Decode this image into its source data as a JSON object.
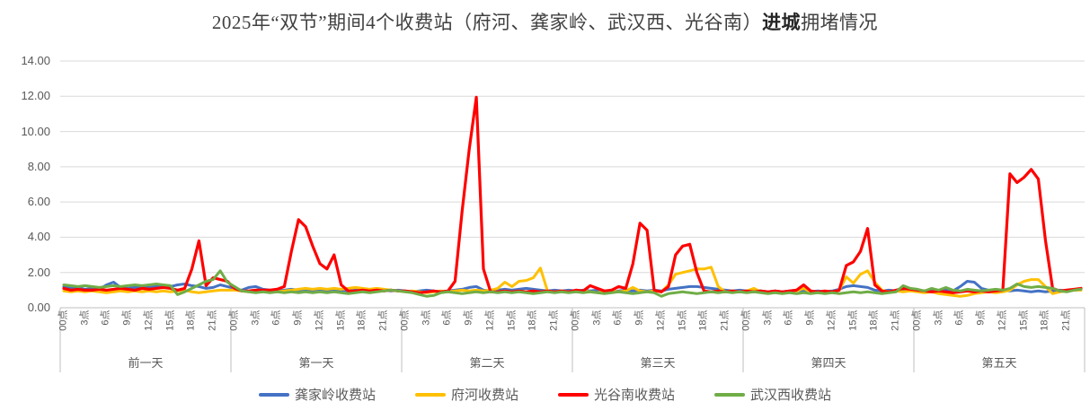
{
  "title": {
    "part1": "2025年“双节”期间4个收费站（府河、龚家岭、武汉西、光谷南）",
    "part2_bold": "进城",
    "part3": "拥堵情况"
  },
  "chart_data": {
    "type": "line",
    "title": "2025年“双节”期间4个收费站（府河、龚家岭、武汉西、光谷南）进城拥堵情况",
    "ylim": [
      0,
      14
    ],
    "ytick_step": 2,
    "ytick_labels": [
      "0.00",
      "2.00",
      "4.00",
      "6.00",
      "8.00",
      "10.00",
      "12.00",
      "14.00"
    ],
    "grid": true,
    "legend_position": "bottom",
    "hours_per_day": 24,
    "hour_label_step": 3,
    "x_hour_labels": [
      "00点",
      "3点",
      "6点",
      "9点",
      "12点",
      "15点",
      "18点",
      "21点"
    ],
    "day_labels": [
      "前一天",
      "第一天",
      "第二天",
      "第三天",
      "第四天",
      "第五天"
    ],
    "series": [
      {
        "name": "龚家岭收费站",
        "color": "#4472C4",
        "values": [
          1.2,
          1.1,
          1.15,
          1.05,
          1.1,
          1.05,
          1.3,
          1.45,
          1.15,
          1.1,
          1.15,
          1.2,
          1.15,
          1.2,
          1.25,
          1.2,
          1.3,
          1.35,
          1.25,
          1.2,
          1.1,
          1.15,
          1.3,
          1.2,
          1.1,
          1.0,
          1.15,
          1.2,
          1.05,
          1.0,
          0.95,
          1.0,
          1.05,
          1.0,
          0.95,
          1.0,
          1.05,
          1.0,
          0.95,
          1.0,
          0.95,
          1.0,
          1.05,
          1.0,
          0.95,
          1.0,
          0.95,
          1.0,
          0.95,
          0.9,
          0.95,
          1.0,
          0.95,
          0.9,
          0.95,
          1.0,
          1.05,
          1.15,
          1.2,
          1.0,
          0.95,
          1.0,
          1.05,
          1.0,
          1.05,
          1.1,
          1.05,
          1.0,
          0.95,
          1.0,
          0.95,
          1.0,
          0.95,
          1.0,
          0.95,
          1.0,
          0.95,
          0.9,
          0.95,
          1.0,
          0.95,
          1.0,
          0.95,
          1.0,
          0.95,
          1.05,
          1.1,
          1.15,
          1.2,
          1.2,
          1.15,
          1.1,
          1.05,
          1.0,
          0.95,
          1.0,
          0.95,
          1.0,
          0.95,
          0.9,
          0.95,
          0.9,
          0.95,
          1.0,
          0.95,
          0.9,
          0.95,
          0.9,
          0.95,
          1.05,
          1.2,
          1.25,
          1.2,
          1.15,
          1.0,
          0.95,
          1.0,
          0.95,
          1.0,
          1.05,
          1.0,
          0.95,
          1.0,
          0.95,
          1.0,
          0.95,
          1.2,
          1.5,
          1.45,
          1.1,
          1.0,
          0.95,
          1.0,
          0.95,
          1.0,
          0.95,
          0.9,
          0.95,
          0.9,
          0.95,
          1.0,
          0.95,
          1.0,
          1.05
        ]
      },
      {
        "name": "府河收费站",
        "color": "#FFC000",
        "values": [
          0.95,
          0.9,
          0.95,
          0.9,
          0.95,
          0.9,
          0.85,
          0.9,
          0.95,
          0.9,
          0.95,
          0.9,
          0.95,
          0.9,
          0.95,
          0.9,
          0.95,
          1.0,
          0.9,
          0.85,
          0.9,
          0.95,
          1.0,
          1.0,
          1.0,
          0.95,
          0.9,
          0.95,
          0.9,
          0.95,
          0.9,
          0.95,
          1.0,
          1.05,
          1.1,
          1.05,
          1.1,
          1.05,
          1.1,
          1.05,
          1.1,
          1.15,
          1.1,
          1.05,
          1.1,
          1.05,
          1.0,
          0.95,
          0.9,
          0.95,
          0.9,
          0.85,
          0.9,
          0.95,
          0.9,
          0.95,
          1.0,
          0.95,
          1.0,
          0.95,
          1.0,
          1.1,
          1.45,
          1.2,
          1.5,
          1.55,
          1.7,
          2.25,
          0.95,
          0.9,
          0.95,
          0.9,
          0.9,
          0.95,
          0.9,
          0.85,
          0.9,
          0.95,
          0.9,
          0.95,
          1.15,
          0.95,
          0.9,
          0.95,
          0.9,
          1.3,
          1.9,
          2.0,
          2.1,
          2.2,
          2.2,
          2.3,
          1.2,
          0.9,
          0.95,
          0.9,
          0.95,
          1.1,
          0.9,
          0.85,
          0.9,
          0.85,
          0.9,
          0.95,
          1.1,
          0.9,
          0.85,
          0.9,
          0.9,
          1.0,
          1.75,
          1.4,
          1.9,
          2.1,
          1.45,
          1.0,
          0.9,
          0.95,
          0.9,
          0.95,
          0.9,
          0.85,
          0.9,
          0.8,
          0.75,
          0.7,
          0.65,
          0.7,
          0.8,
          0.85,
          0.9,
          0.85,
          0.9,
          1.0,
          1.3,
          1.5,
          1.6,
          1.6,
          1.2,
          0.8,
          0.9,
          0.95,
          1.0,
          1.0
        ]
      },
      {
        "name": "光谷南收费站",
        "color": "#FF0000",
        "values": [
          1.1,
          1.0,
          1.05,
          1.0,
          1.0,
          1.05,
          1.0,
          1.05,
          1.1,
          1.05,
          1.0,
          1.1,
          1.05,
          1.1,
          1.15,
          1.1,
          1.0,
          1.1,
          2.2,
          3.8,
          1.25,
          1.7,
          1.6,
          1.5,
          1.1,
          0.95,
          0.95,
          1.0,
          1.0,
          1.0,
          1.05,
          1.2,
          3.2,
          5.0,
          4.6,
          3.5,
          2.5,
          2.2,
          3.0,
          1.3,
          0.95,
          0.95,
          1.0,
          0.95,
          1.0,
          0.95,
          1.0,
          0.95,
          0.95,
          0.9,
          0.85,
          0.9,
          0.95,
          0.9,
          0.95,
          1.5,
          5.5,
          9.0,
          11.95,
          2.2,
          0.9,
          0.9,
          0.95,
          0.9,
          0.95,
          0.9,
          0.95,
          0.9,
          0.95,
          0.9,
          0.95,
          0.9,
          1.0,
          0.95,
          1.25,
          1.1,
          0.95,
          1.0,
          1.2,
          1.1,
          2.5,
          4.8,
          4.4,
          1.0,
          0.9,
          1.2,
          3.0,
          3.5,
          3.6,
          2.0,
          0.95,
          0.9,
          0.95,
          0.9,
          0.95,
          0.9,
          0.95,
          0.9,
          0.95,
          0.9,
          0.95,
          0.9,
          0.95,
          1.0,
          1.3,
          0.95,
          0.9,
          0.95,
          0.9,
          1.0,
          2.4,
          2.6,
          3.2,
          4.5,
          1.3,
          0.95,
          0.9,
          1.0,
          1.1,
          1.05,
          1.0,
          0.95,
          0.9,
          0.95,
          0.9,
          0.85,
          0.9,
          0.95,
          0.9,
          0.95,
          0.9,
          0.95,
          1.0,
          7.6,
          7.1,
          7.4,
          7.85,
          7.3,
          3.8,
          1.1,
          0.95,
          1.0,
          1.05,
          1.1
        ]
      },
      {
        "name": "武汉西收费站",
        "color": "#70AD47",
        "values": [
          1.3,
          1.25,
          1.2,
          1.25,
          1.2,
          1.15,
          1.2,
          1.25,
          1.2,
          1.25,
          1.3,
          1.25,
          1.3,
          1.35,
          1.3,
          1.25,
          0.75,
          0.9,
          1.1,
          1.3,
          1.5,
          1.6,
          2.1,
          1.45,
          1.2,
          0.95,
          0.9,
          0.85,
          0.9,
          0.85,
          0.9,
          0.85,
          0.9,
          0.85,
          0.9,
          0.85,
          0.9,
          0.85,
          0.9,
          0.85,
          0.8,
          0.85,
          0.9,
          0.85,
          0.9,
          0.95,
          1.0,
          0.95,
          0.9,
          0.85,
          0.75,
          0.65,
          0.7,
          0.85,
          0.9,
          0.85,
          0.8,
          0.85,
          0.9,
          0.85,
          0.9,
          0.85,
          0.9,
          0.85,
          0.9,
          0.85,
          0.8,
          0.85,
          0.9,
          0.85,
          0.9,
          0.85,
          0.9,
          0.85,
          0.9,
          0.85,
          0.8,
          0.85,
          0.9,
          0.85,
          0.8,
          0.85,
          0.9,
          0.85,
          0.65,
          0.8,
          0.85,
          0.9,
          0.85,
          0.8,
          0.85,
          0.9,
          0.85,
          0.9,
          0.85,
          0.9,
          0.85,
          0.9,
          0.85,
          0.8,
          0.85,
          0.8,
          0.85,
          0.8,
          0.85,
          0.8,
          0.85,
          0.8,
          0.85,
          0.8,
          0.85,
          0.9,
          0.85,
          0.9,
          0.85,
          0.8,
          0.85,
          0.9,
          1.25,
          1.1,
          1.05,
          0.95,
          1.1,
          1.0,
          1.15,
          1.0,
          0.95,
          1.05,
          1.0,
          0.95,
          1.0,
          1.05,
          1.0,
          1.1,
          1.35,
          1.2,
          1.15,
          1.2,
          1.15,
          1.1,
          0.95,
          0.9,
          1.0,
          1.05
        ]
      }
    ],
    "colors": {
      "gridline": "#D9D9D9",
      "axis": "#BFBFBF",
      "axis_text": "#595959",
      "title_text": "#404040"
    }
  },
  "legend": {
    "items": [
      {
        "label": "龚家岭收费站",
        "color": "#4472C4"
      },
      {
        "label": "府河收费站",
        "color": "#FFC000"
      },
      {
        "label": "光谷南收费站",
        "color": "#FF0000"
      },
      {
        "label": "武汉西收费站",
        "color": "#70AD47"
      }
    ]
  }
}
